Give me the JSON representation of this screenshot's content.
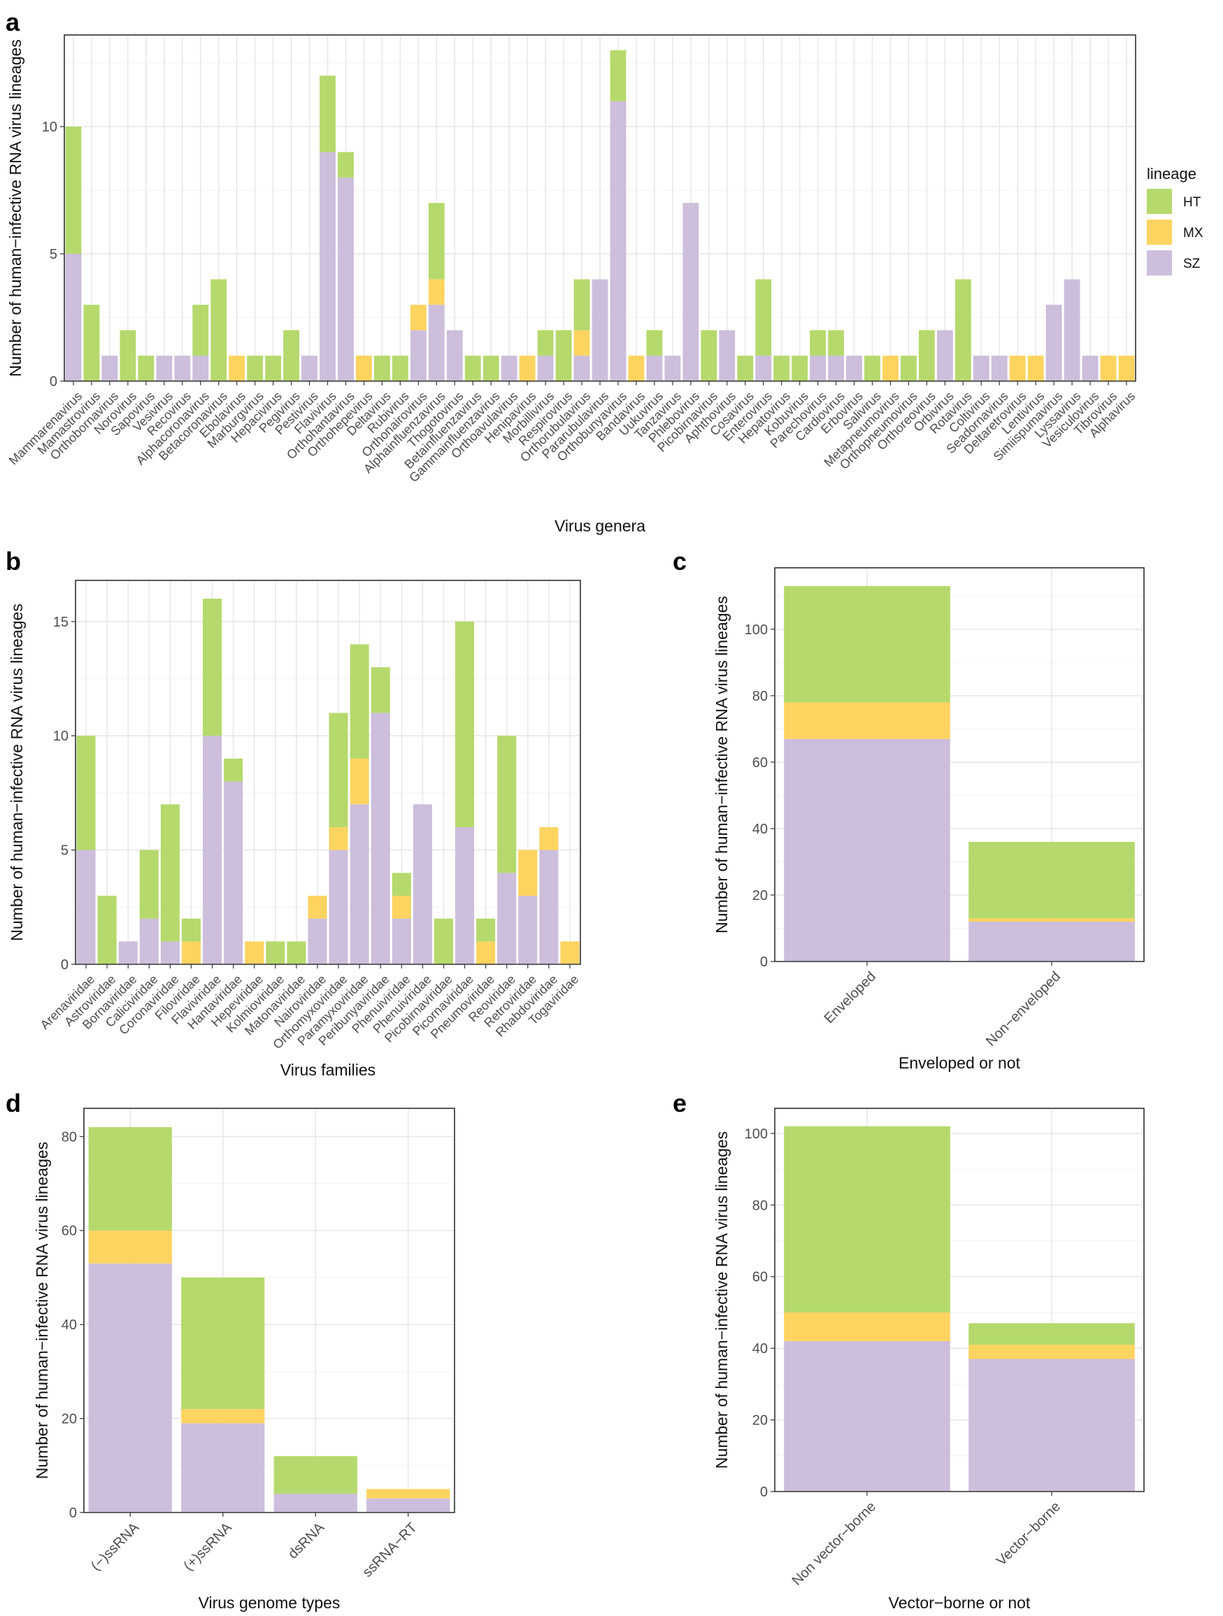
{
  "colors": {
    "HT": "#b5d96c",
    "MX": "#fed460",
    "SZ": "#cdbedc"
  },
  "legend": {
    "title": "lineage",
    "entries": [
      "HT",
      "MX",
      "SZ"
    ]
  },
  "chart_data": [
    {
      "panel": "a",
      "type": "bar",
      "stacked": true,
      "title": "",
      "xlabel": "Virus genera",
      "ylabel": "Number of human−infective RNA virus lineages",
      "ylim": [
        0,
        13.6
      ],
      "yticks": [
        0,
        5,
        10
      ],
      "categories": [
        "Mammarenavirus",
        "Mamastrovirus",
        "Orthobornavirus",
        "Norovirus",
        "Sapovirus",
        "Vesivirus",
        "Recovirus",
        "Alphacoronavirus",
        "Betacoronavirus",
        "Ebolavirus",
        "Marburgvirus",
        "Hepacivirus",
        "Pegivirus",
        "Pestivirus",
        "Flavivirus",
        "Orthohantavirus",
        "Orthohepevirus",
        "Deltavirus",
        "Rubivirus",
        "Orthonairovirus",
        "Alphainfluenzavirus",
        "Thogotovirus",
        "Betainfluenzavirus",
        "Gammainfluenzavirus",
        "Orthoavulavirus",
        "Henipavirus",
        "Morbillivirus",
        "Respirovirus",
        "Orthorubulavirus",
        "Pararubulavirus",
        "Orthobunyavirus",
        "Bandavirus",
        "Uukuvirus",
        "Tanzavirus",
        "Phlebovirus",
        "Picobirnavirus",
        "Aphthovirus",
        "Cosavirus",
        "Enterovirus",
        "Hepatovirus",
        "Kobuvirus",
        "Parechovirus",
        "Cardiovirus",
        "Erbovirus",
        "Salivirus",
        "Metapneumovirus",
        "Orthopneumovirus",
        "Orthoreovirus",
        "Orbivirus",
        "Rotavirus",
        "Coltivirus",
        "Seadornavirus",
        "Deltaretrovirus",
        "Lentivirus",
        "Simiispumavirus",
        "Lyssavirus",
        "Vesiculovirus",
        "Tibrovirus",
        "Alphavirus"
      ],
      "series": [
        {
          "name": "SZ",
          "values": [
            5,
            0,
            1,
            0,
            0,
            1,
            1,
            1,
            0,
            0,
            0,
            0,
            0,
            1,
            9,
            8,
            0,
            0,
            0,
            2,
            3,
            2,
            0,
            0,
            1,
            0,
            1,
            0,
            1,
            4,
            11,
            0,
            1,
            1,
            7,
            0,
            2,
            0,
            1,
            0,
            0,
            1,
            1,
            1,
            0,
            0,
            0,
            0,
            2,
            0,
            1,
            1,
            0,
            0,
            3,
            4,
            1,
            0,
            0
          ]
        },
        {
          "name": "MX",
          "values": [
            0,
            0,
            0,
            0,
            0,
            0,
            0,
            0,
            0,
            1,
            0,
            0,
            0,
            0,
            0,
            0,
            1,
            0,
            0,
            1,
            1,
            0,
            0,
            0,
            0,
            1,
            0,
            0,
            1,
            0,
            0,
            1,
            0,
            0,
            0,
            0,
            0,
            0,
            0,
            0,
            0,
            0,
            0,
            0,
            0,
            1,
            0,
            0,
            0,
            0,
            0,
            0,
            1,
            1,
            0,
            0,
            0,
            1,
            1
          ]
        },
        {
          "name": "HT",
          "values": [
            5,
            3,
            0,
            2,
            1,
            0,
            0,
            2,
            4,
            0,
            1,
            1,
            2,
            0,
            3,
            1,
            0,
            1,
            1,
            0,
            3,
            0,
            1,
            1,
            0,
            0,
            1,
            2,
            2,
            0,
            2,
            0,
            1,
            0,
            0,
            2,
            0,
            1,
            3,
            1,
            1,
            1,
            1,
            0,
            1,
            0,
            1,
            2,
            0,
            4,
            0,
            0,
            0,
            0,
            0,
            0,
            0,
            0,
            0
          ]
        }
      ]
    },
    {
      "panel": "b",
      "type": "bar",
      "stacked": true,
      "title": "",
      "xlabel": "Virus families",
      "ylabel": "Number of human−infective RNA virus lineages",
      "ylim": [
        0,
        16.8
      ],
      "yticks": [
        0,
        5,
        10,
        15
      ],
      "categories": [
        "Arenaviridae",
        "Astroviridae",
        "Bornaviridae",
        "Caliciviridae",
        "Coronaviridae",
        "Filoviridae",
        "Flaviviridae",
        "Hantaviridae",
        "Hepeviridae",
        "Kolmioviridae",
        "Matonaviridae",
        "Nairoviridae",
        "Orthomyxoviridae",
        "Paramyxoviridae",
        "Peribunyaviridae",
        "Phenuiviridae",
        "Phenuiviridae",
        "Picobirnaviridae",
        "Picornaviridae",
        "Pneumoviridae",
        "Reoviridae",
        "Retroviridae",
        "Rhabdoviridae",
        "Togaviridae"
      ],
      "series": [
        {
          "name": "SZ",
          "values": [
            5,
            0,
            1,
            2,
            1,
            0,
            10,
            8,
            0,
            0,
            0,
            2,
            5,
            7,
            11,
            2,
            7,
            0,
            6,
            0,
            4,
            3,
            5,
            0
          ]
        },
        {
          "name": "MX",
          "values": [
            0,
            0,
            0,
            0,
            0,
            1,
            0,
            0,
            1,
            0,
            0,
            1,
            1,
            2,
            0,
            1,
            0,
            0,
            0,
            1,
            0,
            2,
            1,
            1
          ]
        },
        {
          "name": "HT",
          "values": [
            5,
            3,
            0,
            3,
            6,
            1,
            6,
            1,
            0,
            1,
            1,
            0,
            5,
            5,
            2,
            1,
            0,
            2,
            9,
            1,
            6,
            0,
            0,
            0
          ]
        }
      ]
    },
    {
      "panel": "c",
      "type": "bar",
      "stacked": true,
      "title": "",
      "xlabel": "Enveloped or not",
      "ylabel": "Number of human−infective RNA virus lineages",
      "ylim": [
        0,
        118.5
      ],
      "yticks": [
        0,
        20,
        40,
        60,
        80,
        100
      ],
      "categories": [
        "Enveloped",
        "Non−enveloped"
      ],
      "series": [
        {
          "name": "SZ",
          "values": [
            67,
            12
          ]
        },
        {
          "name": "MX",
          "values": [
            11,
            1
          ]
        },
        {
          "name": "HT",
          "values": [
            35,
            23
          ]
        }
      ]
    },
    {
      "panel": "d",
      "type": "bar",
      "stacked": true,
      "title": "",
      "xlabel": "Virus genome types",
      "ylabel": "Number of human−infective RNA virus lineages",
      "ylim": [
        0,
        86
      ],
      "yticks": [
        0,
        20,
        40,
        60,
        80
      ],
      "categories": [
        "(−)ssRNA",
        "(+)ssRNA",
        "dsRNA",
        "ssRNA−RT"
      ],
      "series": [
        {
          "name": "SZ",
          "values": [
            53,
            19,
            4,
            3
          ]
        },
        {
          "name": "MX",
          "values": [
            7,
            3,
            0,
            2
          ]
        },
        {
          "name": "HT",
          "values": [
            22,
            28,
            8,
            0
          ]
        }
      ]
    },
    {
      "panel": "e",
      "type": "bar",
      "stacked": true,
      "title": "",
      "xlabel": "Vector−borne or not",
      "ylabel": "Number of human−infective RNA virus lineages",
      "ylim": [
        0,
        107
      ],
      "yticks": [
        0,
        20,
        40,
        60,
        80,
        100
      ],
      "categories": [
        "Non vector−borne",
        "Vector−borne"
      ],
      "series": [
        {
          "name": "SZ",
          "values": [
            42,
            37
          ]
        },
        {
          "name": "MX",
          "values": [
            8,
            4
          ]
        },
        {
          "name": "HT",
          "values": [
            52,
            6
          ]
        }
      ]
    }
  ]
}
